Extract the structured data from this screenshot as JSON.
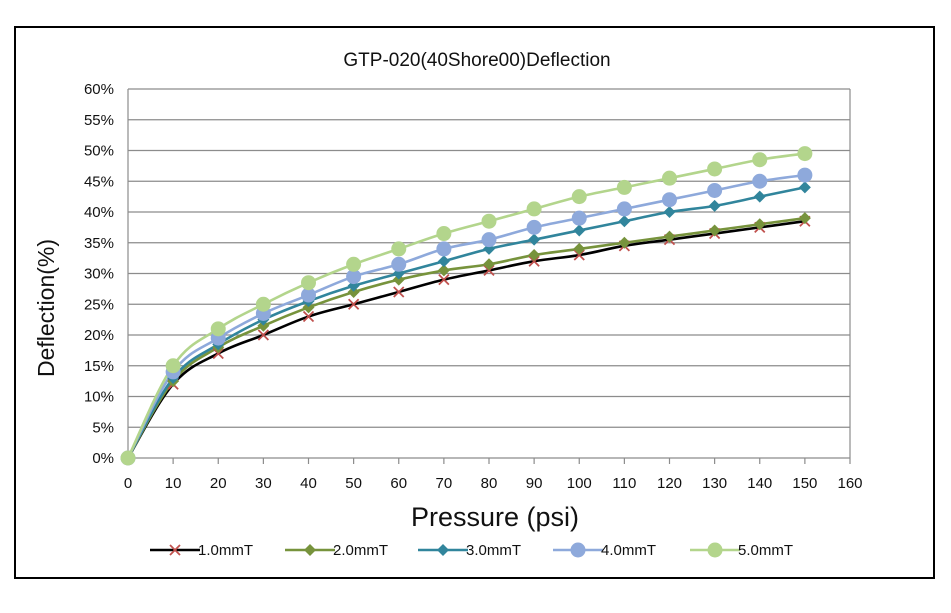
{
  "chart_data": {
    "type": "line",
    "title": "GTP-020(40Shore00)Deflection",
    "xlabel": "Pressure (psi)",
    "ylabel": "Deflection(%)",
    "xlim": [
      0,
      160
    ],
    "ylim": [
      0,
      60
    ],
    "x_ticks": [
      "0",
      "10",
      "20",
      "30",
      "40",
      "50",
      "60",
      "70",
      "80",
      "90",
      "100",
      "110",
      "120",
      "130",
      "140",
      "150",
      "160"
    ],
    "y_ticks": [
      "0%",
      "5%",
      "10%",
      "15%",
      "20%",
      "25%",
      "30%",
      "35%",
      "40%",
      "45%",
      "50%",
      "55%",
      "60%"
    ],
    "grid": "horizontal",
    "legend_position": "bottom",
    "x": [
      0,
      10,
      20,
      30,
      40,
      50,
      60,
      70,
      80,
      90,
      100,
      110,
      120,
      130,
      140,
      150
    ],
    "series": [
      {
        "name": "1.0mmT",
        "color": "#000000",
        "marker": "x",
        "marker_color": "#c0504d",
        "values": [
          0,
          12,
          17,
          20,
          23,
          25,
          27,
          29,
          30.5,
          32,
          33,
          34.5,
          35.5,
          36.5,
          37.5,
          38.5
        ]
      },
      {
        "name": "2.0mmT",
        "color": "#77933c",
        "marker": "diamond",
        "marker_color": "#77933c",
        "values": [
          0,
          12.5,
          18,
          21.5,
          24.5,
          27,
          29,
          30.5,
          31.5,
          33,
          34,
          35,
          36,
          37,
          38,
          39
        ]
      },
      {
        "name": "3.0mmT",
        "color": "#31859c",
        "marker": "diamond",
        "marker_color": "#31859c",
        "values": [
          0,
          13,
          18.5,
          22.5,
          25.5,
          28,
          30,
          32,
          34,
          35.5,
          37,
          38.5,
          40,
          41,
          42.5,
          44
        ]
      },
      {
        "name": "4.0mmT",
        "color": "#8ea9db",
        "marker": "circle",
        "marker_color": "#8ea9db",
        "values": [
          0,
          14,
          19.5,
          23.5,
          26.5,
          29.5,
          31.5,
          34,
          35.5,
          37.5,
          39,
          40.5,
          42,
          43.5,
          45,
          46
        ]
      },
      {
        "name": "5.0mmT",
        "color": "#b3d58c",
        "marker": "circle",
        "marker_color": "#b3d58c",
        "values": [
          0,
          15,
          21,
          25,
          28.5,
          31.5,
          34,
          36.5,
          38.5,
          40.5,
          42.5,
          44,
          45.5,
          47,
          48.5,
          49.5
        ]
      }
    ]
  }
}
